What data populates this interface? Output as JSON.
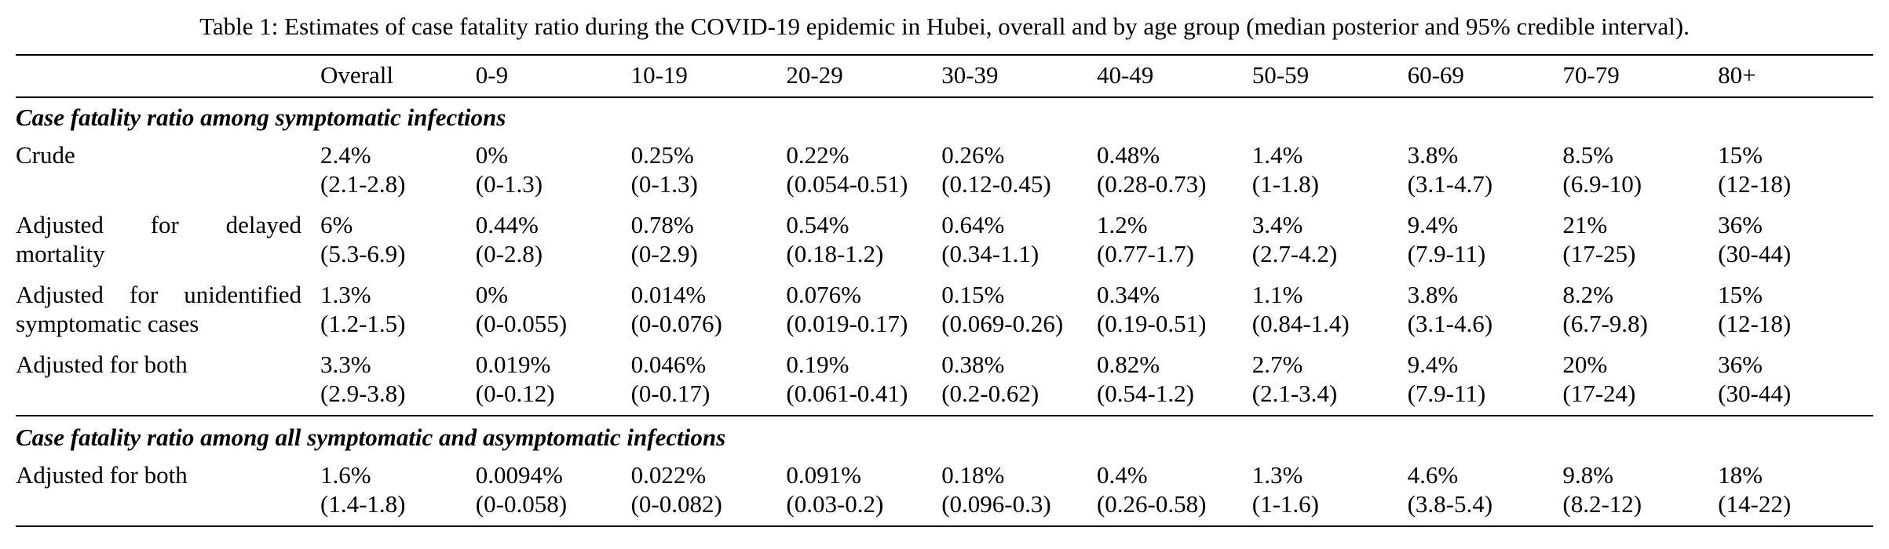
{
  "title": "Table 1: Estimates of case fatality ratio during the COVID-19 epidemic in Hubei, overall and by age group (median posterior and 95% credible interval).",
  "table": {
    "columns": [
      "",
      "Overall",
      "0-9",
      "10-19",
      "20-29",
      "30-39",
      "40-49",
      "50-59",
      "60-69",
      "70-79",
      "80+"
    ],
    "sections": [
      {
        "header": "Case fatality ratio among symptomatic infections",
        "rows": [
          {
            "label": "Crude",
            "cells": [
              {
                "value": "2.4%",
                "ci": "(2.1-2.8)"
              },
              {
                "value": "0%",
                "ci": "(0-1.3)"
              },
              {
                "value": "0.25%",
                "ci": "(0-1.3)"
              },
              {
                "value": "0.22%",
                "ci": "(0.054-0.51)"
              },
              {
                "value": "0.26%",
                "ci": "(0.12-0.45)"
              },
              {
                "value": "0.48%",
                "ci": "(0.28-0.73)"
              },
              {
                "value": "1.4%",
                "ci": "(1-1.8)"
              },
              {
                "value": "3.8%",
                "ci": "(3.1-4.7)"
              },
              {
                "value": "8.5%",
                "ci": "(6.9-10)"
              },
              {
                "value": "15%",
                "ci": "(12-18)"
              }
            ]
          },
          {
            "label": "Adjusted for delayed mortality",
            "cells": [
              {
                "value": "6%",
                "ci": "(5.3-6.9)"
              },
              {
                "value": "0.44%",
                "ci": "(0-2.8)"
              },
              {
                "value": "0.78%",
                "ci": "(0-2.9)"
              },
              {
                "value": "0.54%",
                "ci": "(0.18-1.2)"
              },
              {
                "value": "0.64%",
                "ci": "(0.34-1.1)"
              },
              {
                "value": "1.2%",
                "ci": "(0.77-1.7)"
              },
              {
                "value": "3.4%",
                "ci": "(2.7-4.2)"
              },
              {
                "value": "9.4%",
                "ci": "(7.9-11)"
              },
              {
                "value": "21%",
                "ci": "(17-25)"
              },
              {
                "value": "36%",
                "ci": "(30-44)"
              }
            ]
          },
          {
            "label": "Adjusted for unidentified symptomatic cases",
            "cells": [
              {
                "value": "1.3%",
                "ci": "(1.2-1.5)"
              },
              {
                "value": "0%",
                "ci": "(0-0.055)"
              },
              {
                "value": "0.014%",
                "ci": "(0-0.076)"
              },
              {
                "value": "0.076%",
                "ci": "(0.019-0.17)"
              },
              {
                "value": "0.15%",
                "ci": "(0.069-0.26)"
              },
              {
                "value": "0.34%",
                "ci": "(0.19-0.51)"
              },
              {
                "value": "1.1%",
                "ci": "(0.84-1.4)"
              },
              {
                "value": "3.8%",
                "ci": "(3.1-4.6)"
              },
              {
                "value": "8.2%",
                "ci": "(6.7-9.8)"
              },
              {
                "value": "15%",
                "ci": "(12-18)"
              }
            ]
          },
          {
            "label": "Adjusted for both",
            "cells": [
              {
                "value": "3.3%",
                "ci": "(2.9-3.8)"
              },
              {
                "value": "0.019%",
                "ci": "(0-0.12)"
              },
              {
                "value": "0.046%",
                "ci": "(0-0.17)"
              },
              {
                "value": "0.19%",
                "ci": "(0.061-0.41)"
              },
              {
                "value": "0.38%",
                "ci": "(0.2-0.62)"
              },
              {
                "value": "0.82%",
                "ci": "(0.54-1.2)"
              },
              {
                "value": "2.7%",
                "ci": "(2.1-3.4)"
              },
              {
                "value": "9.4%",
                "ci": "(7.9-11)"
              },
              {
                "value": "20%",
                "ci": "(17-24)"
              },
              {
                "value": "36%",
                "ci": "(30-44)"
              }
            ]
          }
        ]
      },
      {
        "header": "Case fatality ratio among all symptomatic and asymptomatic infections",
        "rows": [
          {
            "label": "Adjusted for both",
            "cells": [
              {
                "value": "1.6%",
                "ci": "(1.4-1.8)"
              },
              {
                "value": "0.0094%",
                "ci": "(0-0.058)"
              },
              {
                "value": "0.022%",
                "ci": "(0-0.082)"
              },
              {
                "value": "0.091%",
                "ci": "(0.03-0.2)"
              },
              {
                "value": "0.18%",
                "ci": "(0.096-0.3)"
              },
              {
                "value": "0.4%",
                "ci": "(0.26-0.58)"
              },
              {
                "value": "1.3%",
                "ci": "(1-1.6)"
              },
              {
                "value": "4.6%",
                "ci": "(3.8-5.4)"
              },
              {
                "value": "9.8%",
                "ci": "(8.2-12)"
              },
              {
                "value": "18%",
                "ci": "(14-22)"
              }
            ]
          }
        ]
      }
    ]
  }
}
